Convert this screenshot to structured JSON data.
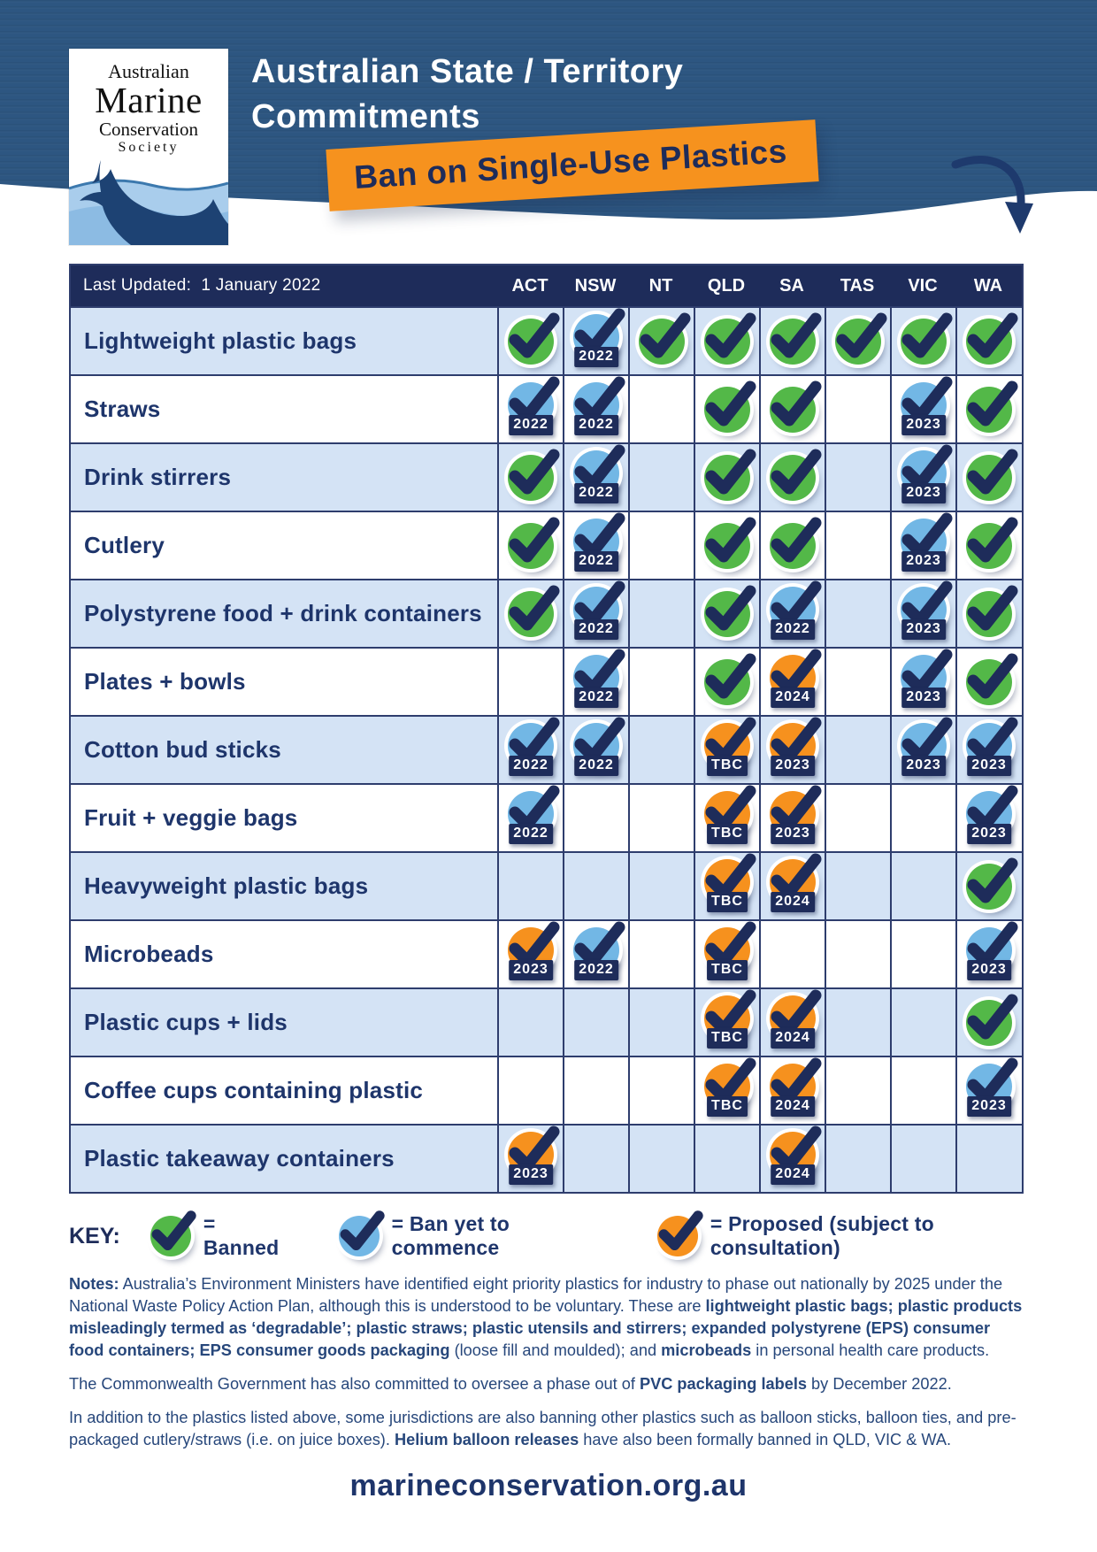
{
  "hero": {
    "logo": {
      "line1": "Australian",
      "line2": "Marine",
      "line3": "Conservation",
      "line4": "Society"
    },
    "title_line1": "Australian State / Territory",
    "title_line2": "Commitments",
    "banner": "Ban on Single-Use Plastics"
  },
  "table": {
    "last_updated": "Last Updated:  1 January 2022",
    "columns": [
      "ACT",
      "NSW",
      "NT",
      "QLD",
      "SA",
      "TAS",
      "VIC",
      "WA"
    ],
    "rows": [
      {
        "label": "Lightweight plastic bags",
        "cells": [
          {
            "state": "banned"
          },
          {
            "state": "pending",
            "year": "2022"
          },
          {
            "state": "banned"
          },
          {
            "state": "banned"
          },
          {
            "state": "banned"
          },
          {
            "state": "banned"
          },
          {
            "state": "banned"
          },
          {
            "state": "banned"
          }
        ]
      },
      {
        "label": "Straws",
        "cells": [
          {
            "state": "pending",
            "year": "2022"
          },
          {
            "state": "pending",
            "year": "2022"
          },
          null,
          {
            "state": "banned"
          },
          {
            "state": "banned"
          },
          null,
          {
            "state": "pending",
            "year": "2023"
          },
          {
            "state": "banned"
          }
        ]
      },
      {
        "label": "Drink stirrers",
        "cells": [
          {
            "state": "banned"
          },
          {
            "state": "pending",
            "year": "2022"
          },
          null,
          {
            "state": "banned"
          },
          {
            "state": "banned"
          },
          null,
          {
            "state": "pending",
            "year": "2023"
          },
          {
            "state": "banned"
          }
        ]
      },
      {
        "label": "Cutlery",
        "cells": [
          {
            "state": "banned"
          },
          {
            "state": "pending",
            "year": "2022"
          },
          null,
          {
            "state": "banned"
          },
          {
            "state": "banned"
          },
          null,
          {
            "state": "pending",
            "year": "2023"
          },
          {
            "state": "banned"
          }
        ]
      },
      {
        "label": "Polystyrene food + drink containers",
        "cells": [
          {
            "state": "banned"
          },
          {
            "state": "pending",
            "year": "2022"
          },
          null,
          {
            "state": "banned"
          },
          {
            "state": "pending",
            "year": "2022"
          },
          null,
          {
            "state": "pending",
            "year": "2023"
          },
          {
            "state": "banned"
          }
        ]
      },
      {
        "label": "Plates + bowls",
        "cells": [
          null,
          {
            "state": "pending",
            "year": "2022"
          },
          null,
          {
            "state": "banned"
          },
          {
            "state": "proposed",
            "year": "2024"
          },
          null,
          {
            "state": "pending",
            "year": "2023"
          },
          {
            "state": "banned"
          }
        ]
      },
      {
        "label": "Cotton bud sticks",
        "cells": [
          {
            "state": "pending",
            "year": "2022"
          },
          {
            "state": "pending",
            "year": "2022"
          },
          null,
          {
            "state": "proposed",
            "year": "TBC"
          },
          {
            "state": "proposed",
            "year": "2023"
          },
          null,
          {
            "state": "pending",
            "year": "2023"
          },
          {
            "state": "pending",
            "year": "2023"
          }
        ]
      },
      {
        "label": "Fruit + veggie bags",
        "cells": [
          {
            "state": "pending",
            "year": "2022"
          },
          null,
          null,
          {
            "state": "proposed",
            "year": "TBC"
          },
          {
            "state": "proposed",
            "year": "2023"
          },
          null,
          null,
          {
            "state": "pending",
            "year": "2023"
          }
        ]
      },
      {
        "label": "Heavyweight plastic bags",
        "cells": [
          null,
          null,
          null,
          {
            "state": "proposed",
            "year": "TBC"
          },
          {
            "state": "proposed",
            "year": "2024"
          },
          null,
          null,
          {
            "state": "banned"
          }
        ]
      },
      {
        "label": "Microbeads",
        "cells": [
          {
            "state": "proposed",
            "year": "2023"
          },
          {
            "state": "pending",
            "year": "2022"
          },
          null,
          {
            "state": "proposed",
            "year": "TBC"
          },
          null,
          null,
          null,
          {
            "state": "pending",
            "year": "2023"
          }
        ]
      },
      {
        "label": "Plastic cups + lids",
        "cells": [
          null,
          null,
          null,
          {
            "state": "proposed",
            "year": "TBC"
          },
          {
            "state": "proposed",
            "year": "2024"
          },
          null,
          null,
          {
            "state": "banned"
          }
        ]
      },
      {
        "label": "Coffee cups containing plastic",
        "cells": [
          null,
          null,
          null,
          {
            "state": "proposed",
            "year": "TBC"
          },
          {
            "state": "proposed",
            "year": "2024"
          },
          null,
          null,
          {
            "state": "pending",
            "year": "2023"
          }
        ]
      },
      {
        "label": "Plastic takeaway containers",
        "cells": [
          {
            "state": "proposed",
            "year": "2023"
          },
          null,
          null,
          null,
          {
            "state": "proposed",
            "year": "2024"
          },
          null,
          null,
          null
        ]
      }
    ]
  },
  "key": {
    "title": "KEY:",
    "items": [
      {
        "state": "banned",
        "label": "= Banned"
      },
      {
        "state": "pending",
        "label": "= Ban yet to commence"
      },
      {
        "state": "proposed",
        "label": "= Proposed (subject to consultation)"
      }
    ]
  },
  "notes": {
    "paragraphs": [
      [
        {
          "text": "Notes:",
          "bold": true
        },
        {
          "text": " Australia’s Environment Ministers have identified eight priority plastics for industry to phase out nationally by 2025 under the National Waste Policy Action Plan, although this is understood to be voluntary. These are ",
          "bold": false
        },
        {
          "text": "lightweight plastic bags; plastic products misleadingly termed as ‘degradable’; plastic straws; plastic utensils and stirrers; expanded polystyrene (EPS) consumer food containers; EPS consumer goods packaging",
          "bold": true
        },
        {
          "text": " (loose fill and moulded); and ",
          "bold": false
        },
        {
          "text": "microbeads",
          "bold": true
        },
        {
          "text": " in personal health care products.",
          "bold": false
        }
      ],
      [
        {
          "text": "The Commonwealth Government has also committed to oversee a phase out of ",
          "bold": false
        },
        {
          "text": "PVC packaging labels",
          "bold": true
        },
        {
          "text": " by December 2022.",
          "bold": false
        }
      ],
      [
        {
          "text": "In addition to the plastics listed above, some jurisdictions are also banning other plastics such as balloon sticks, balloon ties, and pre-packaged cutlery/straws (i.e. on juice boxes). ",
          "bold": false
        },
        {
          "text": "Helium balloon releases",
          "bold": true
        },
        {
          "text": " have also been formally banned in QLD, VIC & WA.",
          "bold": false
        }
      ]
    ]
  },
  "footer": {
    "url": "marineconservation.org.au"
  },
  "colors": {
    "banned": "#53b848",
    "pending": "#72b7e5",
    "proposed": "#f6911e",
    "navy": "#1e2c5a"
  }
}
